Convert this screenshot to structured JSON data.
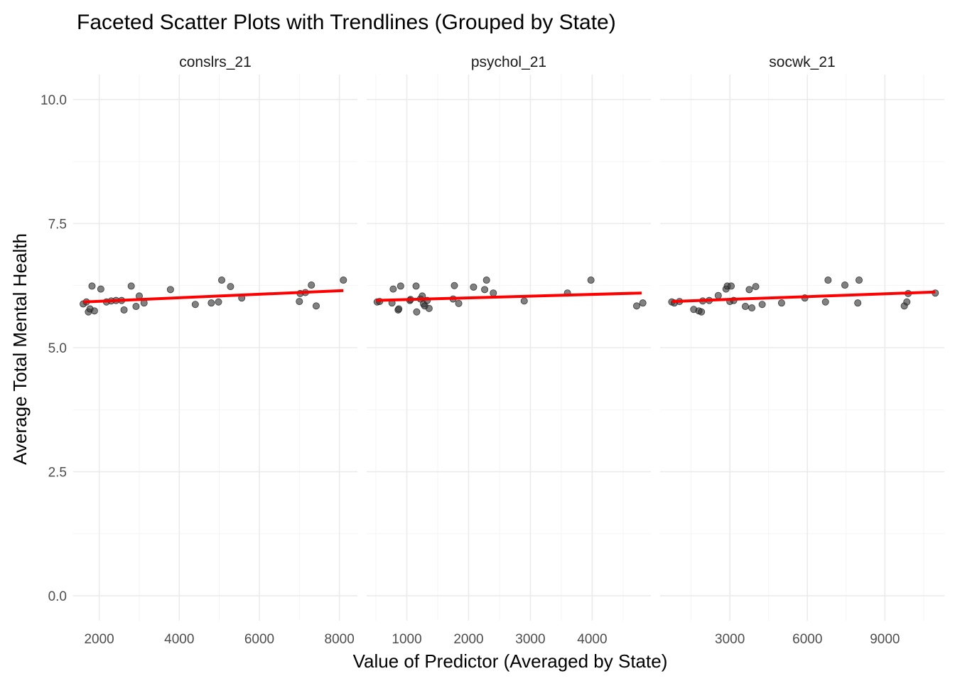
{
  "chart_data": {
    "type": "scatter",
    "title": "Faceted Scatter Plots with Trendlines (Grouped by State)",
    "xlabel": "Value of Predictor (Averaged by State)",
    "ylabel": "Average Total Mental Health",
    "ylim": [
      -0.5,
      10.5
    ],
    "yticks": [
      0.0,
      2.5,
      5.0,
      7.5,
      10.0
    ],
    "ytick_labels": [
      "0.0",
      "2.5",
      "5.0",
      "7.5",
      "10.0"
    ],
    "point_color": "#333333",
    "trend_color": "#ff0000",
    "grid": true,
    "legend": "none",
    "facets": [
      {
        "name": "conslrs_21",
        "xlim": [
          1350,
          8450
        ],
        "xticks": [
          2000,
          4000,
          6000,
          8000
        ],
        "xtick_labels": [
          "2000",
          "4000",
          "6000",
          "8000"
        ],
        "trend": {
          "x": [
            1600,
            8100
          ],
          "y": [
            5.92,
            6.15
          ]
        },
        "points": [
          {
            "x": 1600,
            "y": 5.88
          },
          {
            "x": 1680,
            "y": 5.92
          },
          {
            "x": 1730,
            "y": 5.72
          },
          {
            "x": 1770,
            "y": 5.78
          },
          {
            "x": 1820,
            "y": 6.24
          },
          {
            "x": 1880,
            "y": 5.74
          },
          {
            "x": 2040,
            "y": 6.18
          },
          {
            "x": 2180,
            "y": 5.92
          },
          {
            "x": 2300,
            "y": 5.94
          },
          {
            "x": 2420,
            "y": 5.95
          },
          {
            "x": 2560,
            "y": 5.95
          },
          {
            "x": 2620,
            "y": 5.76
          },
          {
            "x": 2800,
            "y": 6.24
          },
          {
            "x": 2920,
            "y": 5.83
          },
          {
            "x": 3000,
            "y": 6.04
          },
          {
            "x": 3120,
            "y": 5.9
          },
          {
            "x": 3780,
            "y": 6.17
          },
          {
            "x": 4400,
            "y": 5.87
          },
          {
            "x": 4800,
            "y": 5.9
          },
          {
            "x": 4980,
            "y": 5.92
          },
          {
            "x": 5060,
            "y": 6.36
          },
          {
            "x": 5280,
            "y": 6.23
          },
          {
            "x": 5560,
            "y": 6.0
          },
          {
            "x": 7000,
            "y": 5.93
          },
          {
            "x": 7020,
            "y": 6.09
          },
          {
            "x": 7150,
            "y": 6.11
          },
          {
            "x": 7300,
            "y": 6.26
          },
          {
            "x": 7420,
            "y": 5.84
          },
          {
            "x": 8100,
            "y": 6.36
          }
        ]
      },
      {
        "name": "psychol_21",
        "xlim": [
          350,
          4950
        ],
        "xticks": [
          1000,
          2000,
          3000,
          4000
        ],
        "xtick_labels": [
          "1000",
          "2000",
          "3000",
          "4000"
        ],
        "trend": {
          "x": [
            500,
            4800
          ],
          "y": [
            5.95,
            6.1
          ]
        },
        "points": [
          {
            "x": 520,
            "y": 5.92
          },
          {
            "x": 560,
            "y": 5.93
          },
          {
            "x": 760,
            "y": 5.9
          },
          {
            "x": 780,
            "y": 6.18
          },
          {
            "x": 860,
            "y": 5.76
          },
          {
            "x": 870,
            "y": 5.78
          },
          {
            "x": 900,
            "y": 6.24
          },
          {
            "x": 1050,
            "y": 5.95
          },
          {
            "x": 1060,
            "y": 5.97
          },
          {
            "x": 1150,
            "y": 6.24
          },
          {
            "x": 1160,
            "y": 5.72
          },
          {
            "x": 1220,
            "y": 5.98
          },
          {
            "x": 1250,
            "y": 6.04
          },
          {
            "x": 1270,
            "y": 5.88
          },
          {
            "x": 1290,
            "y": 5.84
          },
          {
            "x": 1330,
            "y": 5.95
          },
          {
            "x": 1360,
            "y": 5.79
          },
          {
            "x": 1750,
            "y": 5.98
          },
          {
            "x": 1770,
            "y": 6.25
          },
          {
            "x": 1840,
            "y": 5.89
          },
          {
            "x": 2080,
            "y": 6.22
          },
          {
            "x": 2260,
            "y": 6.17
          },
          {
            "x": 2290,
            "y": 6.36
          },
          {
            "x": 2400,
            "y": 6.1
          },
          {
            "x": 2900,
            "y": 5.94
          },
          {
            "x": 3600,
            "y": 6.1
          },
          {
            "x": 3980,
            "y": 6.36
          },
          {
            "x": 4720,
            "y": 5.84
          },
          {
            "x": 4820,
            "y": 5.9
          }
        ]
      },
      {
        "name": "socwk_21",
        "xlim": [
          300,
          11300
        ],
        "xticks": [
          3000,
          6000,
          9000
        ],
        "xtick_labels": [
          "3000",
          "6000",
          "9000"
        ],
        "trend": {
          "x": [
            750,
            10950
          ],
          "y": [
            5.93,
            6.12
          ]
        },
        "points": [
          {
            "x": 750,
            "y": 5.92
          },
          {
            "x": 850,
            "y": 5.9
          },
          {
            "x": 1050,
            "y": 5.93
          },
          {
            "x": 1600,
            "y": 5.77
          },
          {
            "x": 1800,
            "y": 5.74
          },
          {
            "x": 1900,
            "y": 5.72
          },
          {
            "x": 1950,
            "y": 5.94
          },
          {
            "x": 2200,
            "y": 5.95
          },
          {
            "x": 2550,
            "y": 6.05
          },
          {
            "x": 2850,
            "y": 6.18
          },
          {
            "x": 2900,
            "y": 6.24
          },
          {
            "x": 3000,
            "y": 5.93
          },
          {
            "x": 3050,
            "y": 6.24
          },
          {
            "x": 3150,
            "y": 5.95
          },
          {
            "x": 3600,
            "y": 5.83
          },
          {
            "x": 3750,
            "y": 6.17
          },
          {
            "x": 3850,
            "y": 5.8
          },
          {
            "x": 4000,
            "y": 6.23
          },
          {
            "x": 4250,
            "y": 5.87
          },
          {
            "x": 5000,
            "y": 5.9
          },
          {
            "x": 5900,
            "y": 6.0
          },
          {
            "x": 6700,
            "y": 5.92
          },
          {
            "x": 6800,
            "y": 6.36
          },
          {
            "x": 7450,
            "y": 6.26
          },
          {
            "x": 7950,
            "y": 5.9
          },
          {
            "x": 8000,
            "y": 6.36
          },
          {
            "x": 9750,
            "y": 5.84
          },
          {
            "x": 9850,
            "y": 5.92
          },
          {
            "x": 9900,
            "y": 6.09
          },
          {
            "x": 10950,
            "y": 6.1
          }
        ]
      }
    ]
  }
}
